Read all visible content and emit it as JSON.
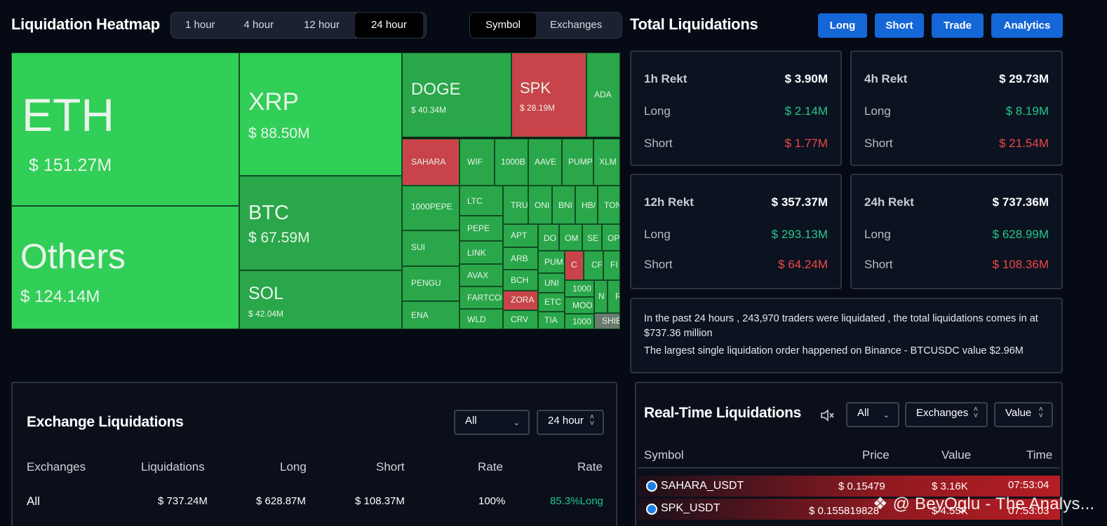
{
  "heatmap": {
    "title": "Liquidation Heatmap",
    "timeframes": [
      "1 hour",
      "4 hour",
      "12 hour",
      "24 hour"
    ],
    "active_timeframe": "24 hour",
    "views": [
      "Symbol",
      "Exchanges"
    ],
    "active_view": "Symbol",
    "tiles": {
      "eth": {
        "name": "ETH",
        "value": "$ 151.27M"
      },
      "others": {
        "name": "Others",
        "value": "$ 124.14M"
      },
      "xrp": {
        "name": "XRP",
        "value": "$ 88.50M"
      },
      "btc": {
        "name": "BTC",
        "value": "$ 67.59M"
      },
      "sol": {
        "name": "SOL",
        "value": "$ 42.04M"
      },
      "doge": {
        "name": "DOGE",
        "value": "$ 40.34M"
      },
      "spk": {
        "name": "SPK",
        "value": "$ 28.19M"
      },
      "ada": {
        "name": "ADA"
      },
      "sahara": {
        "name": "SAHARA"
      },
      "wif": {
        "name": "WIF"
      },
      "b1000": {
        "name": "1000B"
      },
      "aave": {
        "name": "AAVE"
      },
      "pump": {
        "name": "PUMP"
      },
      "xlm": {
        "name": "XLM"
      },
      "pepe1000": {
        "name": "1000PEPE"
      },
      "ltc": {
        "name": "LTC"
      },
      "tru": {
        "name": "TRU"
      },
      "ond": {
        "name": "ONI"
      },
      "bnb": {
        "name": "BNI"
      },
      "hb": {
        "name": "HB/"
      },
      "ton": {
        "name": "TON"
      },
      "pepe": {
        "name": "PEPE"
      },
      "sui": {
        "name": "SUI"
      },
      "apt": {
        "name": "APT"
      },
      "dot": {
        "name": "DO"
      },
      "om": {
        "name": "OM"
      },
      "sei": {
        "name": "SE"
      },
      "op": {
        "name": "OP"
      },
      "link": {
        "name": "LINK"
      },
      "arb": {
        "name": "ARB"
      },
      "pum2": {
        "name": "PUM"
      },
      "c": {
        "name": "C"
      },
      "cf": {
        "name": "CF"
      },
      "fi": {
        "name": "FI"
      },
      "avax": {
        "name": "AVAX"
      },
      "bch": {
        "name": "BCH"
      },
      "uni": {
        "name": "UNI"
      },
      "k1000": {
        "name": "1000"
      },
      "pengu": {
        "name": "PENGU"
      },
      "fartco": {
        "name": "FARTCOI"
      },
      "zora": {
        "name": "ZORA"
      },
      "etc": {
        "name": "ETC"
      },
      "moo": {
        "name": "MOO"
      },
      "n": {
        "name": "N"
      },
      "r": {
        "name": "R"
      },
      "ena": {
        "name": "ENA"
      },
      "wld": {
        "name": "WLD"
      },
      "crv": {
        "name": "CRV"
      },
      "tia": {
        "name": "TIA"
      },
      "k1000b": {
        "name": "1000"
      },
      "shib": {
        "name": "SHIB"
      }
    }
  },
  "total": {
    "title": "Total Liquidations",
    "buttons": [
      "Long",
      "Short",
      "Trade",
      "Analytics"
    ],
    "cards": [
      {
        "label": "1h Rekt",
        "total": "$ 3.90M",
        "long_label": "Long",
        "long": "$ 2.14M",
        "short_label": "Short",
        "short": "$ 1.77M"
      },
      {
        "label": "4h Rekt",
        "total": "$ 29.73M",
        "long_label": "Long",
        "long": "$ 8.19M",
        "short_label": "Short",
        "short": "$ 21.54M"
      },
      {
        "label": "12h Rekt",
        "total": "$ 357.37M",
        "long_label": "Long",
        "long": "$ 293.13M",
        "short_label": "Short",
        "short": "$ 64.24M"
      },
      {
        "label": "24h Rekt",
        "total": "$ 737.36M",
        "long_label": "Long",
        "long": "$ 628.99M",
        "short_label": "Short",
        "short": "$ 108.36M"
      }
    ],
    "summary_line1": "In the past 24 hours , 243,970 traders were liquidated , the total liquidations comes in at $737.36 million",
    "summary_line2": "The largest single liquidation order happened on Binance - BTCUSDC value $2.96M"
  },
  "exchange": {
    "title": "Exchange Liquidations",
    "filter": "All",
    "timeframe": "24 hour",
    "headers": [
      "Exchanges",
      "Liquidations",
      "Long",
      "Short",
      "Rate",
      "Rate"
    ],
    "rows": [
      {
        "exchange": "All",
        "liquidations": "$ 737.24M",
        "long": "$ 628.87M",
        "short": "$ 108.37M",
        "rate": "100%",
        "rate2": "85.3%Long"
      }
    ]
  },
  "realtime": {
    "title": "Real-Time Liquidations",
    "filter_all": "All",
    "filter_exchanges": "Exchanges",
    "filter_value": "Value",
    "headers": [
      "Symbol",
      "Price",
      "Value",
      "Time"
    ],
    "rows": [
      {
        "symbol": "SAHARA_USDT",
        "price": "$ 0.15479",
        "value": "$ 3.16K",
        "time": "07:53:04"
      },
      {
        "symbol": "SPK_USDT",
        "price": "$ 0.155819828",
        "value": "$ 4.55K",
        "time": "07:53:03"
      }
    ]
  },
  "watermark": "@ BeyOglu - The Analys..."
}
